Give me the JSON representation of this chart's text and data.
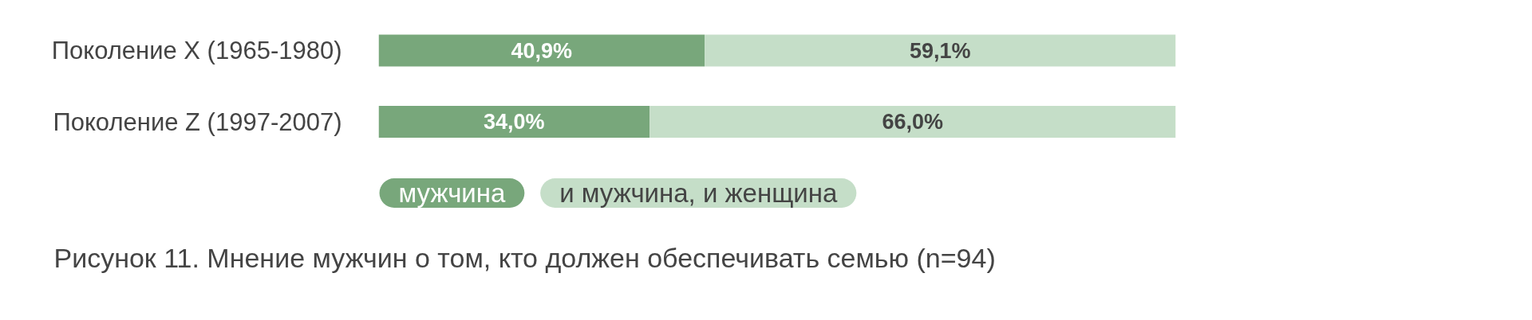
{
  "chart_data": {
    "type": "bar",
    "orientation": "horizontal",
    "stacked": true,
    "title": "Рисунок 11. Мнение мужчин о том, кто должен обеспечивать семью (n=94)",
    "categories": [
      "Поколение X (1965-1980)",
      "Поколение Z (1997-2007)"
    ],
    "series": [
      {
        "name": "мужчина",
        "color": "#78a77b",
        "values": [
          40.9,
          34.0
        ],
        "value_labels": [
          "40,9%",
          "34,0%"
        ]
      },
      {
        "name": "и мужчина, и женщина",
        "color": "#c5dec8",
        "values": [
          59.1,
          66.0
        ],
        "value_labels": [
          "59,1%",
          "66,0%"
        ]
      }
    ],
    "legend": "bottom"
  }
}
